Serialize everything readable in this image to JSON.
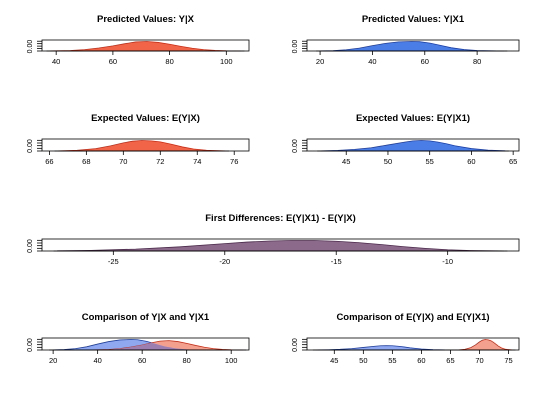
{
  "chart_data": [
    {
      "id": "pv_yx",
      "type": "area",
      "title": "Predicted Values: Y|X",
      "xlim": [
        35,
        108
      ],
      "xticks": [
        40,
        60,
        80,
        100
      ],
      "ytick_label": "0.00",
      "series": [
        {
          "fill": "#f26447",
          "stroke": "#c0301a",
          "x": [
            38,
            45,
            50,
            55,
            60,
            64,
            68,
            72,
            76,
            80,
            84,
            88,
            92,
            96,
            100,
            105
          ],
          "y": [
            0.0005,
            0.002,
            0.006,
            0.013,
            0.022,
            0.031,
            0.039,
            0.041,
            0.037,
            0.029,
            0.02,
            0.012,
            0.006,
            0.0025,
            0.0008,
            0.0002
          ]
        }
      ]
    },
    {
      "id": "pv_yx1",
      "type": "area",
      "title": "Predicted Values: Y|X1",
      "xlim": [
        15,
        96
      ],
      "xticks": [
        20,
        40,
        60,
        80
      ],
      "ytick_label": "0.00",
      "series": [
        {
          "fill": "#4a7ee6",
          "stroke": "#1f3f9c",
          "x": [
            20,
            25,
            30,
            35,
            40,
            45,
            50,
            55,
            58,
            62,
            66,
            70,
            75,
            80,
            85,
            90
          ],
          "y": [
            0.0005,
            0.002,
            0.006,
            0.014,
            0.026,
            0.037,
            0.044,
            0.046,
            0.045,
            0.038,
            0.027,
            0.016,
            0.007,
            0.0025,
            0.0008,
            0.0002
          ]
        }
      ]
    },
    {
      "id": "ev_yx",
      "type": "area",
      "title": "Expected Values: E(Y|X)",
      "xlim": [
        65.6,
        76.8
      ],
      "xticks": [
        66,
        68,
        70,
        72,
        74,
        76
      ],
      "ytick_label": "0.00",
      "series": [
        {
          "fill": "#f26447",
          "stroke": "#c0301a",
          "x": [
            66.5,
            67.5,
            68.5,
            69.3,
            70,
            70.5,
            71,
            71.5,
            72,
            72.6,
            73.2,
            73.8,
            74.5,
            75.5
          ],
          "y": [
            0.005,
            0.02,
            0.07,
            0.15,
            0.24,
            0.29,
            0.31,
            0.3,
            0.27,
            0.2,
            0.12,
            0.06,
            0.02,
            0.004
          ]
        }
      ]
    },
    {
      "id": "ev_yx1",
      "type": "area",
      "title": "Expected Values: E(Y|X1)",
      "xlim": [
        40.3,
        65.7
      ],
      "xticks": [
        45,
        50,
        55,
        60,
        65
      ],
      "ytick_label": "0.00",
      "series": [
        {
          "fill": "#4a7ee6",
          "stroke": "#1f3f9c",
          "x": [
            42,
            44,
            46,
            48,
            50,
            52,
            53,
            54,
            55,
            56,
            57,
            58,
            60,
            62,
            64
          ],
          "y": [
            0.002,
            0.008,
            0.02,
            0.04,
            0.075,
            0.11,
            0.125,
            0.13,
            0.125,
            0.11,
            0.09,
            0.065,
            0.03,
            0.01,
            0.003
          ]
        }
      ]
    },
    {
      "id": "fd",
      "type": "area",
      "title": "First Differences: E(Y|X1) - E(Y|X)",
      "xlim": [
        -28.2,
        -6.8
      ],
      "xticks": [
        -25,
        -20,
        -15,
        -10
      ],
      "ytick_label": "0.00",
      "series": [
        {
          "fill": "#8c6a8c",
          "stroke": "#4a2a4a",
          "x": [
            -27.5,
            -26,
            -24,
            -22,
            -20,
            -19,
            -18,
            -17,
            -16,
            -15,
            -14,
            -13,
            -12,
            -11,
            -10,
            -9,
            -7.5
          ],
          "y": [
            0.002,
            0.006,
            0.018,
            0.04,
            0.07,
            0.085,
            0.095,
            0.1,
            0.1,
            0.093,
            0.08,
            0.062,
            0.042,
            0.025,
            0.012,
            0.005,
            0.001
          ]
        }
      ]
    },
    {
      "id": "cmp_pv",
      "type": "area",
      "title": "Comparison of Y|X and Y|X1",
      "xlim": [
        15,
        108
      ],
      "xticks": [
        20,
        40,
        60,
        80,
        100
      ],
      "ytick_label": "0.00",
      "series": [
        {
          "fill": "#8fa8f0",
          "stroke": "#1f3f9c",
          "x": [
            20,
            25,
            30,
            35,
            40,
            45,
            50,
            55,
            58,
            62,
            66,
            70,
            75,
            80,
            85,
            90
          ],
          "y": [
            0.0005,
            0.002,
            0.006,
            0.014,
            0.026,
            0.037,
            0.044,
            0.046,
            0.045,
            0.038,
            0.027,
            0.016,
            0.007,
            0.0025,
            0.0008,
            0.0002
          ]
        },
        {
          "fill": "#f4a08f",
          "stroke": "#c0301a",
          "x": [
            38,
            45,
            50,
            55,
            60,
            64,
            68,
            72,
            76,
            80,
            84,
            88,
            92,
            96,
            100,
            105
          ],
          "y": [
            0.0005,
            0.002,
            0.006,
            0.013,
            0.022,
            0.031,
            0.039,
            0.041,
            0.037,
            0.029,
            0.02,
            0.012,
            0.006,
            0.0025,
            0.0008,
            0.0002
          ]
        }
      ],
      "overlap_fill": "#9c7fb0"
    },
    {
      "id": "cmp_ev",
      "type": "area",
      "title": "Comparison of E(Y|X) and E(Y|X1)",
      "xlim": [
        40.3,
        76.8
      ],
      "xticks": [
        45,
        50,
        55,
        60,
        65,
        70,
        75
      ],
      "ytick_label": "0.00",
      "series": [
        {
          "fill": "#8fa8f0",
          "stroke": "#1f3f9c",
          "x": [
            42,
            44,
            46,
            48,
            50,
            52,
            53,
            54,
            55,
            56,
            57,
            58,
            60,
            62,
            64
          ],
          "y": [
            0.002,
            0.008,
            0.02,
            0.04,
            0.075,
            0.11,
            0.125,
            0.13,
            0.125,
            0.11,
            0.09,
            0.065,
            0.03,
            0.01,
            0.003
          ]
        },
        {
          "fill": "#f4a08f",
          "stroke": "#c0301a",
          "x": [
            66.5,
            67.5,
            68.5,
            69.3,
            70,
            70.5,
            71,
            71.5,
            72,
            72.6,
            73.2,
            73.8,
            74.5,
            75.5
          ],
          "y": [
            0.005,
            0.02,
            0.07,
            0.15,
            0.24,
            0.29,
            0.31,
            0.3,
            0.27,
            0.2,
            0.12,
            0.06,
            0.02,
            0.004
          ]
        }
      ]
    }
  ]
}
